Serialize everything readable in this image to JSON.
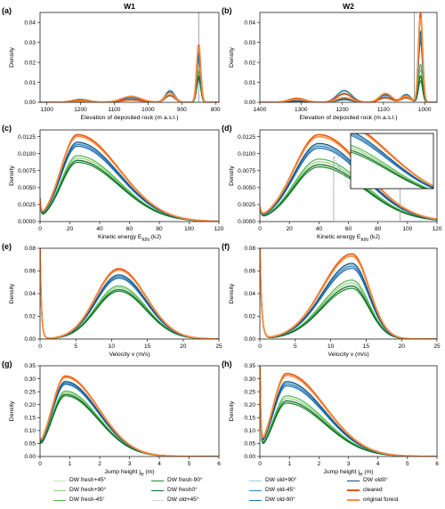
{
  "figure": {
    "column_titles": [
      "W1",
      "W2"
    ],
    "legend": [
      {
        "label": "DW fresh+45°",
        "color": "#c7e6b4",
        "width": 1.2
      },
      {
        "label": "DW fresh+90°",
        "color": "#8fd17a",
        "width": 1.2
      },
      {
        "label": "DW fresh-45°",
        "color": "#4cb34a",
        "width": 1.2
      },
      {
        "label": "DW fresh-90°",
        "color": "#238b38",
        "width": 1.2
      },
      {
        "label": "DW fresh0°",
        "color": "#0e6a2a",
        "width": 1.2
      },
      {
        "label": "DW old+45°",
        "color": "#c6dbef",
        "width": 1.2
      },
      {
        "label": "DW old+90°",
        "color": "#9ecae1",
        "width": 1.2
      },
      {
        "label": "DW old-45°",
        "color": "#3182bd",
        "width": 1.2
      },
      {
        "label": "DW old-90°",
        "color": "#2171b5",
        "width": 1.2
      },
      {
        "label": "DW old0°",
        "color": "#0b4a7a",
        "width": 1.2
      },
      {
        "label": "cleared",
        "color": "#e6550d",
        "width": 1.6
      },
      {
        "label": "original forest",
        "color": "#fd8d3c",
        "width": 1.6
      }
    ]
  },
  "chart_data": [
    {
      "panel": "(a)",
      "title": "W1",
      "type": "line",
      "xlabel": "Elevation of deposited rock (m a.s.l.)",
      "ylabel": "Density",
      "xlim": [
        1320,
        790
      ],
      "ylim": [
        0,
        0.045
      ],
      "xticks": [
        1300,
        1200,
        1100,
        1000,
        900,
        800
      ],
      "yticks": [
        0.0,
        0.01,
        0.02,
        0.03,
        0.04
      ],
      "ytick_decimals": 2,
      "vline": 850,
      "peaks": [
        {
          "x": 850,
          "w": 6,
          "min": 0.011,
          "max": 0.029
        },
        {
          "x": 935,
          "w": 14,
          "min": 0.003,
          "max": 0.006
        },
        {
          "x": 1050,
          "w": 30,
          "min": 0.001,
          "max": 0.003
        },
        {
          "x": 1200,
          "w": 25,
          "min": 0.0004,
          "max": 0.0015
        }
      ]
    },
    {
      "panel": "(b)",
      "title": "W2",
      "type": "line",
      "xlabel": "Elevation of deposited rock (m a.s.l.)",
      "ylabel": "Density",
      "xlim": [
        1400,
        970
      ],
      "ylim": [
        0,
        0.045
      ],
      "xticks": [
        1400,
        1300,
        1200,
        1100,
        1000
      ],
      "yticks": [
        0.0,
        0.01,
        0.02,
        0.03,
        0.04
      ],
      "ytick_decimals": 2,
      "vline": 1025,
      "peaks": [
        {
          "x": 1010,
          "w": 5,
          "min": 0.009,
          "max": 0.045
        },
        {
          "x": 1045,
          "w": 12,
          "min": 0.002,
          "max": 0.004
        },
        {
          "x": 1095,
          "w": 15,
          "min": 0.002,
          "max": 0.0045
        },
        {
          "x": 1195,
          "w": 18,
          "min": 0.001,
          "max": 0.006
        },
        {
          "x": 1310,
          "w": 20,
          "min": 0.0005,
          "max": 0.002
        }
      ]
    },
    {
      "panel": "(c)",
      "type": "line",
      "xlabel": "Kinetic energy E_KIN (kJ)",
      "ylabel": "Density",
      "xlim": [
        0,
        120
      ],
      "ylim": [
        0,
        0.0135
      ],
      "xticks": [
        0,
        20,
        40,
        60,
        80,
        100,
        120
      ],
      "yticks": [
        0,
        0.0025,
        0.005,
        0.0075,
        0.01,
        0.0125
      ],
      "ytick_decimals": 4,
      "curve": {
        "kind": "skew",
        "mode": 25,
        "s1": 11,
        "s2": 28,
        "min": 0.0085,
        "max": 0.0128,
        "start": 0.0025
      }
    },
    {
      "panel": "(d)",
      "type": "line",
      "xlabel": "Kinetic energy E_KIN (kJ)",
      "ylabel": "Density",
      "xlim": [
        0,
        120
      ],
      "ylim": [
        0,
        0.0135
      ],
      "xticks": [
        0,
        20,
        40,
        60,
        80,
        100,
        120
      ],
      "yticks": [
        0,
        0.0025,
        0.005,
        0.0075,
        0.01,
        0.0125
      ],
      "ytick_decimals": 4,
      "curve": {
        "kind": "skew",
        "mode": 40,
        "s1": 17,
        "s2": 30,
        "min": 0.0078,
        "max": 0.0128,
        "start": 0.0015
      },
      "inset": {
        "xlim": [
          50,
          95
        ]
      }
    },
    {
      "panel": "(e)",
      "type": "line",
      "xlabel": "Velocity v (m/s)",
      "ylabel": "Density",
      "xlim": [
        0,
        25
      ],
      "ylim": [
        0,
        0.08
      ],
      "xticks": [
        0,
        5,
        10,
        15,
        20,
        25
      ],
      "yticks": [
        0.0,
        0.02,
        0.04,
        0.06,
        0.08
      ],
      "ytick_decimals": 2,
      "curve": {
        "kind": "skew",
        "mode": 11,
        "s1": 3.2,
        "s2": 3.8,
        "min": 0.041,
        "max": 0.062,
        "start": 0.08
      }
    },
    {
      "panel": "(f)",
      "type": "line",
      "xlabel": "Velocity v (m/s)",
      "ylabel": "Density",
      "xlim": [
        0,
        25
      ],
      "ylim": [
        0,
        0.08
      ],
      "xticks": [
        0,
        5,
        10,
        15,
        20,
        25
      ],
      "yticks": [
        0.0,
        0.02,
        0.04,
        0.06,
        0.08
      ],
      "ytick_decimals": 2,
      "curve": {
        "kind": "skew",
        "mode": 13,
        "s1": 4.2,
        "s2": 2.4,
        "min": 0.043,
        "max": 0.075,
        "start": 0.08
      }
    },
    {
      "panel": "(g)",
      "type": "line",
      "xlabel": "Jump height j_H (m)",
      "ylabel": "Density",
      "xlim": [
        0,
        6
      ],
      "ylim": [
        0,
        0.35
      ],
      "xticks": [
        0,
        1,
        2,
        3,
        4,
        5,
        6
      ],
      "yticks": [
        0.0,
        0.05,
        0.1,
        0.15,
        0.2,
        0.25,
        0.3,
        0.35
      ],
      "ytick_decimals": 2,
      "curve": {
        "kind": "skew",
        "mode": 0.85,
        "s1": 0.45,
        "s2": 1.1,
        "min": 0.23,
        "max": 0.31,
        "start": 0.02
      }
    },
    {
      "panel": "(h)",
      "type": "line",
      "xlabel": "Jump height j_H (m)",
      "ylabel": "Density",
      "xlim": [
        0,
        6
      ],
      "ylim": [
        0,
        0.35
      ],
      "xticks": [
        0,
        1,
        2,
        3,
        4,
        5,
        6
      ],
      "yticks": [
        0.0,
        0.05,
        0.1,
        0.15,
        0.2,
        0.25,
        0.3,
        0.35
      ],
      "ytick_decimals": 2,
      "curve": {
        "kind": "skew",
        "mode": 0.9,
        "s1": 0.45,
        "s2": 1.3,
        "min": 0.2,
        "max": 0.32,
        "start": 0.35
      }
    }
  ]
}
